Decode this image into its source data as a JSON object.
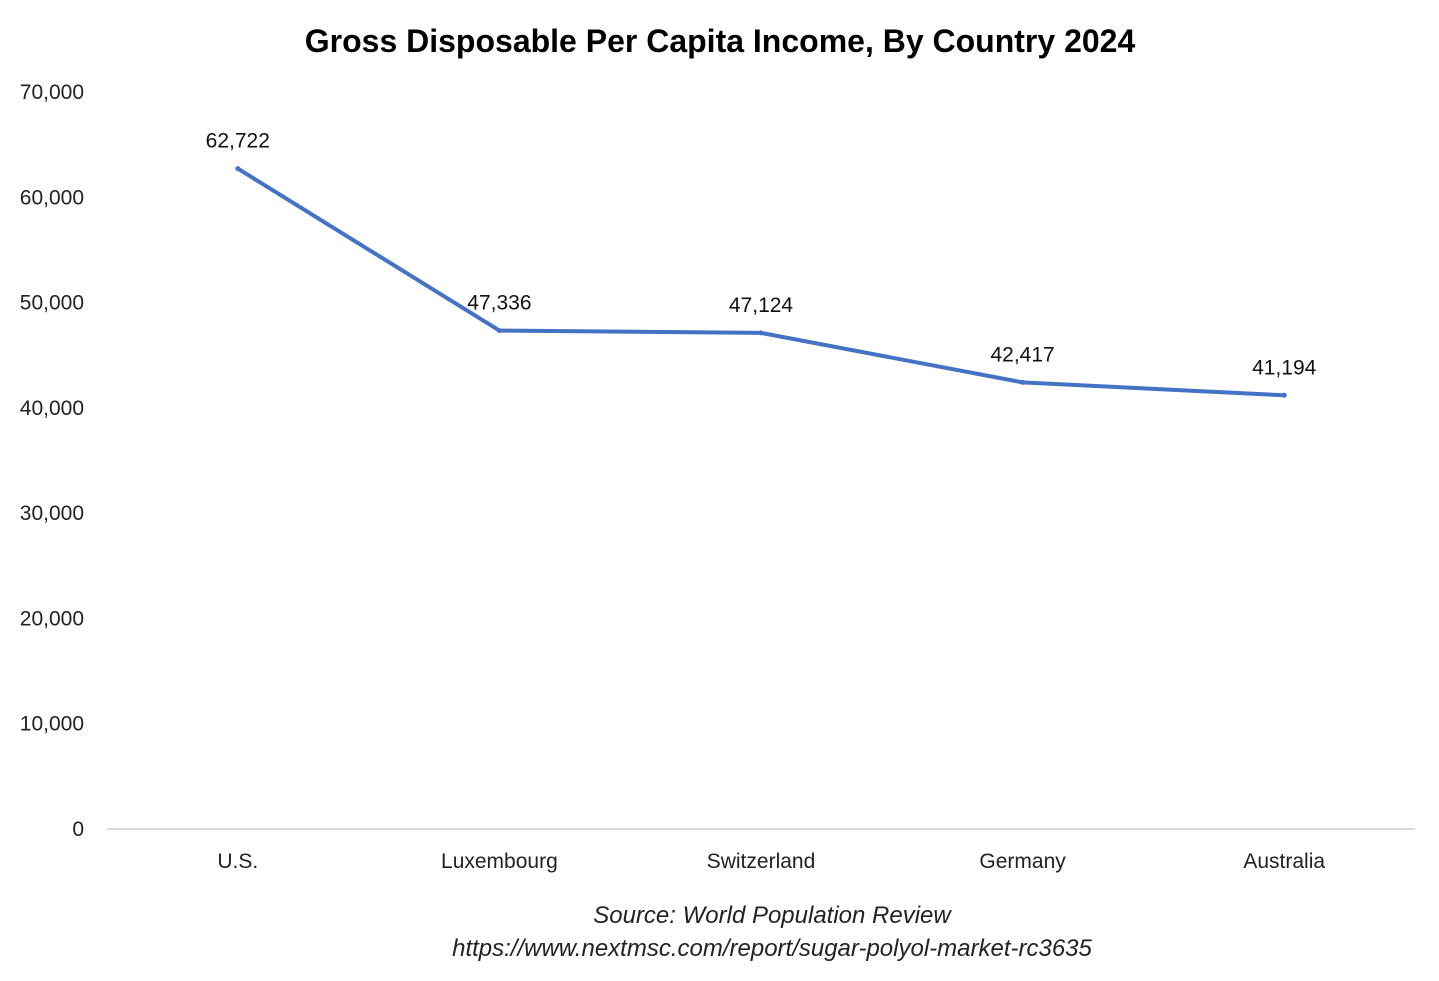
{
  "chart_data": {
    "type": "line",
    "title": "Gross Disposable Per Capita Income, By Country 2024",
    "xlabel": "",
    "ylabel": "",
    "categories": [
      "U.S.",
      "Luxembourg",
      "Switzerland",
      "Germany",
      "Australia"
    ],
    "series": [
      {
        "values": [
          62722,
          47336,
          47124,
          42417,
          41194
        ],
        "data_labels": [
          "62,722",
          "47,336",
          "47,124",
          "42,417",
          "41,194"
        ],
        "color": "#4472C4"
      }
    ],
    "ylim": [
      0,
      70000
    ],
    "y_ticks": [
      0,
      10000,
      20000,
      30000,
      40000,
      50000,
      60000,
      70000
    ],
    "y_tick_labels": [
      "0",
      "10,000",
      "20,000",
      "30,000",
      "40,000",
      "50,000",
      "60,000",
      "70,000"
    ],
    "grid": false,
    "legend": "none",
    "axis_color": "#D9D9D9"
  },
  "source": {
    "line1": "Source: World Population Review",
    "line2": "https://www.nextmsc.com/report/sugar-polyol-market-rc3635"
  }
}
